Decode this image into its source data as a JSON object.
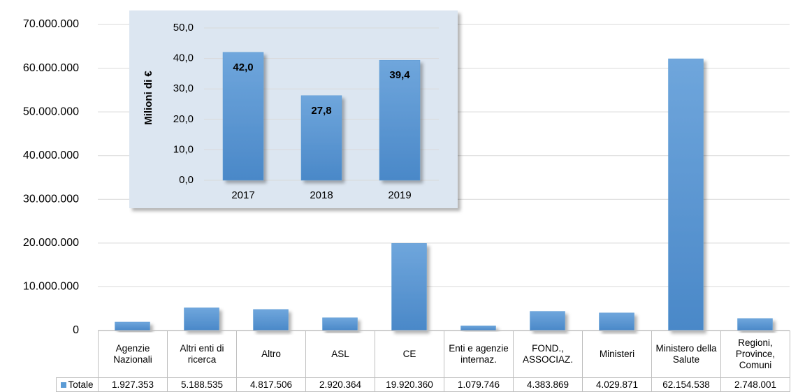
{
  "chart_data": [
    {
      "type": "bar",
      "categories": [
        "Agenzie Nazionali",
        "Altri enti di ricerca",
        "Altro",
        "ASL",
        "CE",
        "Enti e agenzie internaz.",
        "FOND., ASSOCIAZ.",
        "Ministeri",
        "Ministero della Salute",
        "Regioni, Province, Comuni"
      ],
      "series": [
        {
          "name": "Totale",
          "color": "#5b9bd5",
          "values": [
            1927353,
            5188535,
            4817506,
            2920364,
            19920360,
            1079746,
            4383869,
            4029871,
            62154538,
            2748001
          ],
          "value_labels": [
            "1.927.353",
            "5.188.535",
            "4.817.506",
            "2.920.364",
            "19.920.360",
            "1.079.746",
            "4.383.869",
            "4.029.871",
            "62.154.538",
            "2.748.001"
          ]
        }
      ],
      "ylim": [
        0,
        70000000
      ],
      "yticks": [
        0,
        {
          "value": 10000000,
          "label": "10.000.000"
        },
        {
          "value": 20000000,
          "label": "20.000.000"
        },
        {
          "value": 30000000,
          "label": "30.000.000"
        },
        {
          "value": 40000000,
          "label": "40.000.000"
        },
        {
          "value": 50000000,
          "label": "50.000.000"
        },
        {
          "value": 60000000,
          "label": "60.000.000"
        },
        {
          "value": 70000000,
          "label": "70.000.000"
        }
      ],
      "grid": true
    },
    {
      "type": "bar",
      "y_label": "Milioni di €",
      "categories": [
        "2017",
        "2018",
        "2019"
      ],
      "values": [
        42.0,
        27.8,
        39.4
      ],
      "value_labels": [
        "42,0",
        "27,8",
        "39,4"
      ],
      "color": "#5b9bd5",
      "ylim": [
        0,
        50
      ],
      "yticks": [
        {
          "value": 0,
          "label": "0,0"
        },
        {
          "value": 10,
          "label": "10,0"
        },
        {
          "value": 20,
          "label": "20,0"
        },
        {
          "value": 30,
          "label": "30,0"
        },
        {
          "value": 40,
          "label": "40,0"
        },
        {
          "value": 50,
          "label": "50,0"
        }
      ],
      "grid": true
    }
  ]
}
